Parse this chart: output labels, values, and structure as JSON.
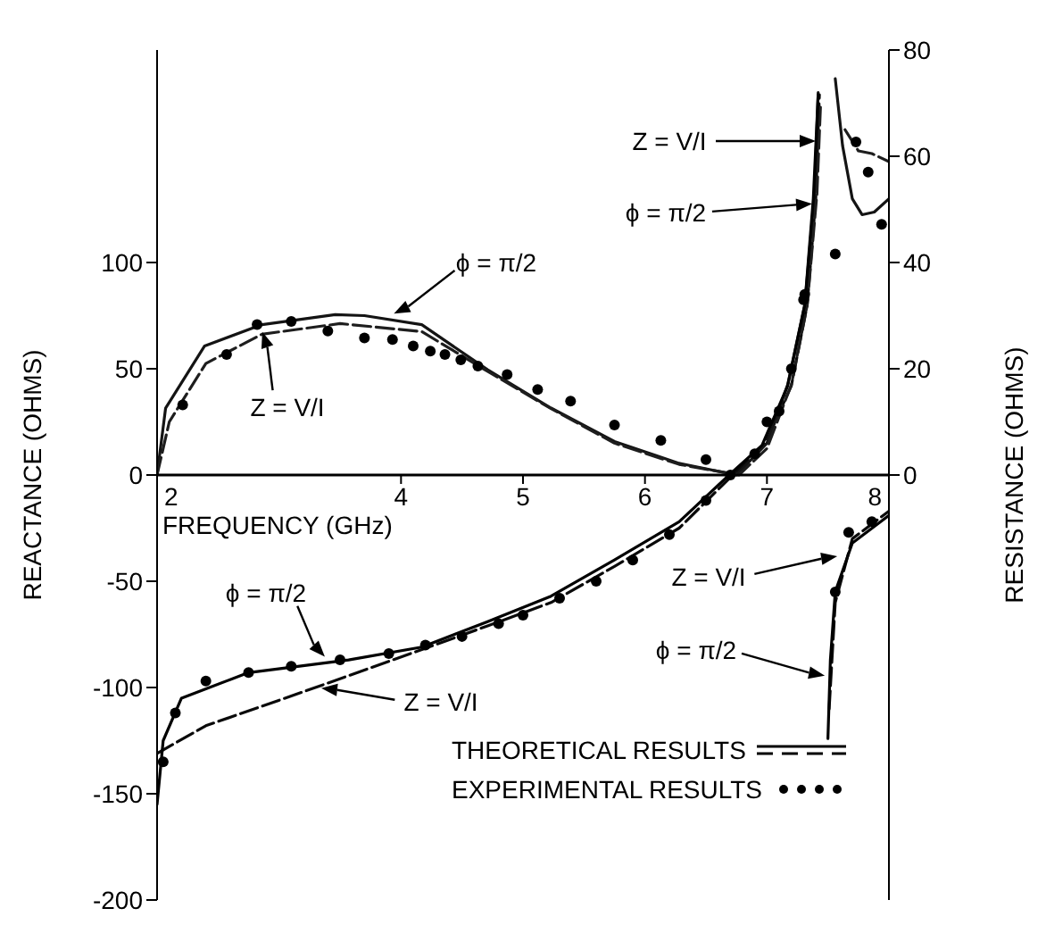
{
  "chart_data": {
    "type": "line",
    "xlabel": "FREQUENCY (GHz)",
    "ylabel": "REACTANCE (OHMS)",
    "y2label": "RESISTANCE (OHMS)",
    "xlim": [
      2,
      8
    ],
    "xticks": [
      2,
      4,
      5,
      6,
      7,
      8
    ],
    "ylim": [
      -200,
      200
    ],
    "yticks": [
      -200,
      -150,
      -100,
      -50,
      0,
      50,
      100
    ],
    "y2lim": [
      -80,
      80
    ],
    "y2ticks": [
      0,
      20,
      40,
      60,
      80
    ],
    "legend": "bottom right",
    "series": [
      {
        "line_style": "dashed",
        "color": "#0a0a0a",
        "x": [
          2.0,
          2.4,
          3.2,
          4.08,
          4.71,
          5.23,
          5.75,
          6.28,
          6.72,
          6.98,
          7.2,
          7.33,
          7.4,
          7.43,
          7.47,
          7.51,
          7.56,
          7.7,
          8.0
        ],
        "values": [
          -131,
          -118,
          -102,
          -84,
          -71,
          -60,
          -43,
          -25,
          0,
          14,
          42,
          80,
          130,
          179,
          null,
          -110,
          -60,
          -30,
          -17
        ]
      },
      {
        "axis": "y2",
        "line_style": "solid",
        "color": "#141414",
        "x": [
          2.0,
          2.07,
          2.39,
          2.86,
          3.46,
          3.7,
          4.17,
          4.71,
          5.23,
          5.75,
          6.28,
          6.75,
          7.0,
          7.17,
          7.31,
          7.39,
          7.42,
          7.5,
          7.56,
          7.62,
          7.7,
          7.78,
          7.88,
          8.0
        ],
        "values": [
          0,
          12.6,
          24.3,
          28.3,
          30.2,
          30,
          28.3,
          19.8,
          12.6,
          6.3,
          2.2,
          0,
          6,
          17,
          32,
          53,
          72,
          null,
          74.6,
          62,
          52,
          49,
          49.5,
          52
        ]
      },
      {
        "axis": "y2",
        "line_style": "dashed",
        "color": "#1e1e1e",
        "x": [
          2.0,
          2.1,
          2.4,
          2.86,
          3.5,
          4.17,
          4.71,
          5.23,
          5.75,
          6.28,
          6.77,
          7.0,
          7.2,
          7.33,
          7.41,
          7.44,
          7.55,
          7.64,
          7.75,
          7.86,
          8.0
        ],
        "values": [
          0,
          10,
          21,
          26.5,
          28.5,
          27,
          19.5,
          12.5,
          6,
          2,
          0,
          5,
          17,
          32,
          53,
          70,
          null,
          65,
          61,
          60.5,
          59
        ]
      },
      {
        "name": "THEORETICAL RESULTS",
        "line_style": "solid",
        "color": "#000000",
        "x": [
          2.0,
          2.05,
          2.2,
          2.75,
          3.57,
          4.17,
          4.71,
          5.23,
          5.75,
          6.28,
          6.69,
          6.96,
          7.17,
          7.31,
          7.38,
          7.42,
          7.46,
          7.5,
          7.52,
          7.56,
          7.7,
          8.0
        ],
        "values": [
          -155,
          -125,
          -105,
          -93,
          -87,
          -81,
          -69,
          -57,
          -40,
          -22,
          0,
          14,
          42,
          80,
          130,
          179,
          null,
          -124,
          -87,
          -55,
          -32,
          -19
        ]
      },
      {
        "name": "EXPERIMENTAL RESULTS",
        "type": "scatter",
        "marker": "circle",
        "color": "#000000",
        "x": [
          2.05,
          2.15,
          2.4,
          2.75,
          3.1,
          3.5,
          3.9,
          4.2,
          4.5,
          4.8,
          5.0,
          5.3,
          5.6,
          5.9,
          6.2,
          6.5,
          6.7,
          7.0,
          7.2,
          7.31,
          7.56,
          7.67,
          7.86
        ],
        "values": [
          -135,
          -112,
          -97,
          -93,
          -90,
          -87,
          -84,
          -80,
          -76,
          -70,
          -66,
          -58,
          -50,
          -40,
          -28,
          -12,
          0,
          25,
          50,
          85,
          -55,
          -27,
          -22
        ]
      },
      {
        "type": "scatter",
        "axis": "y2",
        "marker": "circle",
        "color": "#000000",
        "x": [
          2.21,
          2.57,
          2.82,
          3.1,
          3.4,
          3.7,
          3.93,
          4.1,
          4.24,
          4.36,
          4.49,
          4.63,
          4.87,
          5.12,
          5.39,
          5.75,
          6.13,
          6.5,
          6.9,
          7.1,
          7.3,
          7.56,
          7.73,
          7.83,
          7.94
        ],
        "values": [
          13.2,
          22.7,
          28.3,
          28.9,
          27.1,
          25.8,
          25.5,
          24.3,
          23.3,
          22.7,
          21.7,
          20.5,
          18.9,
          16.1,
          13.9,
          9.4,
          6.5,
          2.9,
          4,
          12,
          33,
          41.6,
          62.7,
          57,
          47.2
        ]
      }
    ],
    "annotations": [
      "ϕ = π/2",
      "Z = V/I",
      "Z = V/I",
      "ϕ = π/2",
      "ϕ = π/2",
      "Z = V/I",
      "Z = V/I",
      "ϕ = π/2"
    ]
  }
}
